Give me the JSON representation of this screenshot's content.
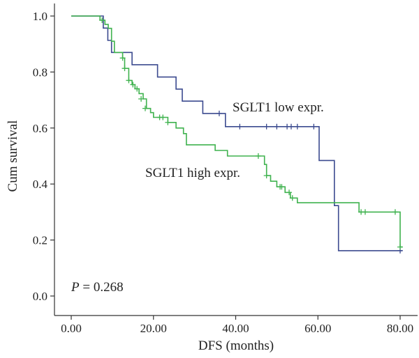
{
  "chart_data": {
    "type": "line",
    "subtype": "kaplan-meier",
    "xlabel": "DFS (months)",
    "ylabel": "Cum survival",
    "xlim": [
      0,
      80
    ],
    "ylim": [
      0,
      1
    ],
    "xticks": [
      0,
      20,
      40,
      60,
      80
    ],
    "xtick_labels": [
      "0.00",
      "20.00",
      "40.00",
      "60.00",
      "80.00"
    ],
    "yticks": [
      0,
      0.2,
      0.4,
      0.6,
      0.8,
      1.0
    ],
    "ytick_labels": [
      "0.0",
      "0.2",
      "0.4",
      "0.6",
      "0.8",
      "1.0"
    ],
    "grid": false,
    "annotation": {
      "italic": "P",
      "text": " = 0.268"
    },
    "series": [
      {
        "name": "SGLT1 low expr.",
        "color": "#3b4a8f",
        "steps": [
          [
            0,
            1.0
          ],
          [
            7.8,
            0.957
          ],
          [
            8.9,
            0.913
          ],
          [
            9.8,
            0.87
          ],
          [
            14.8,
            0.826
          ],
          [
            21.0,
            0.782
          ],
          [
            25.5,
            0.739
          ],
          [
            27.0,
            0.696
          ],
          [
            32.0,
            0.652
          ],
          [
            37.5,
            0.605
          ],
          [
            60.3,
            0.484
          ],
          [
            64.0,
            0.323
          ],
          [
            65.0,
            0.162
          ],
          [
            80.5,
            0.162
          ]
        ],
        "censored": [
          [
            36.0,
            0.652
          ],
          [
            41.0,
            0.605
          ],
          [
            47.5,
            0.605
          ],
          [
            50.0,
            0.605
          ],
          [
            52.5,
            0.605
          ],
          [
            53.5,
            0.605
          ],
          [
            55.0,
            0.605
          ],
          [
            59.0,
            0.605
          ],
          [
            80.0,
            0.162
          ]
        ]
      },
      {
        "name": "SGLT1 high expr.",
        "color": "#3fb24e",
        "steps": [
          [
            0,
            1.0
          ],
          [
            7.0,
            0.985
          ],
          [
            8.2,
            0.97
          ],
          [
            9.0,
            0.956
          ],
          [
            9.8,
            0.91
          ],
          [
            10.5,
            0.87
          ],
          [
            12.5,
            0.85
          ],
          [
            13.0,
            0.813
          ],
          [
            14.0,
            0.77
          ],
          [
            14.8,
            0.755
          ],
          [
            15.5,
            0.74
          ],
          [
            16.5,
            0.723
          ],
          [
            17.5,
            0.704
          ],
          [
            18.3,
            0.67
          ],
          [
            19.3,
            0.655
          ],
          [
            20.0,
            0.638
          ],
          [
            23.5,
            0.62
          ],
          [
            25.5,
            0.6
          ],
          [
            27.3,
            0.58
          ],
          [
            28.0,
            0.54
          ],
          [
            35.0,
            0.52
          ],
          [
            38.0,
            0.5
          ],
          [
            47.0,
            0.47
          ],
          [
            47.5,
            0.43
          ],
          [
            48.5,
            0.41
          ],
          [
            50.0,
            0.39
          ],
          [
            52.0,
            0.37
          ],
          [
            53.3,
            0.35
          ],
          [
            55.0,
            0.333
          ],
          [
            70.0,
            0.3
          ],
          [
            80.0,
            0.175
          ],
          [
            80.5,
            0.175
          ]
        ],
        "censored": [
          [
            7.5,
            0.985
          ],
          [
            12.5,
            0.85
          ],
          [
            13.0,
            0.813
          ],
          [
            14.0,
            0.77
          ],
          [
            15.0,
            0.755
          ],
          [
            16.0,
            0.74
          ],
          [
            17.0,
            0.704
          ],
          [
            18.0,
            0.67
          ],
          [
            21.5,
            0.638
          ],
          [
            22.3,
            0.638
          ],
          [
            23.5,
            0.62
          ],
          [
            45.5,
            0.5
          ],
          [
            47.5,
            0.43
          ],
          [
            50.8,
            0.39
          ],
          [
            51.2,
            0.39
          ],
          [
            53.0,
            0.37
          ],
          [
            53.8,
            0.35
          ],
          [
            70.5,
            0.3
          ],
          [
            71.5,
            0.3
          ],
          [
            78.8,
            0.3
          ],
          [
            80.0,
            0.175
          ]
        ]
      }
    ]
  }
}
